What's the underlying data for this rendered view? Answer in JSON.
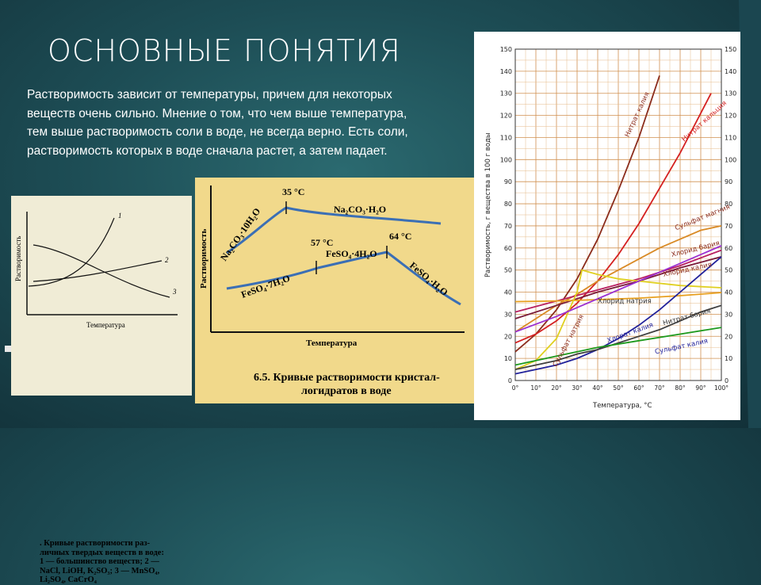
{
  "slide": {
    "title": "ОСНОВНЫЕ ПОНЯТИЯ",
    "text": "Растворимость зависит от температуры, причем для некоторых веществ очень сильно. Мнение о том, что чем выше температура, тем выше растворимость соли в воде, не всегда верно. Есть соли, растворимость которых в воде сначала растет, а затем падает."
  },
  "figure1": {
    "ylabel": "Растворимость",
    "xlabel": "Температура",
    "curve_labels": [
      "1",
      "2",
      "3"
    ],
    "caption_lines": [
      ". Кривые растворимости раз-",
      "личных твердых веществ в воде:",
      "1 — большинство веществ; 2 —",
      "NaCl, LiOH, K₂SO₃; 3 — MnSO₄,",
      "Li₂SO₄, CaCrO₄"
    ]
  },
  "figure2": {
    "ylabel": "Растворимость",
    "xlabel": "Температура",
    "labels": {
      "t35": "35 °C",
      "t57": "57 °C",
      "t64": "64 °C",
      "na10": "Na₂CO₃·10H₂O",
      "na1": "Na₂CO₃·H₂O",
      "fe4": "FeSO₄·4H₂O",
      "fe7": "FeSO₄·7H₂O",
      "fe1": "FeSO₄·H₂O"
    },
    "caption_num": "6.5.",
    "caption_lines": [
      "Кривые растворимости кристал-",
      "логидратов в воде"
    ]
  },
  "chart_data": {
    "type": "line",
    "xlabel": "Температура, °C",
    "ylabel": "Растворимость, г вещества в 100 г воды",
    "xlim": [
      0,
      100
    ],
    "ylim": [
      0,
      150
    ],
    "x_ticks": [
      "0°",
      "10°",
      "20°",
      "30°",
      "40°",
      "50°",
      "60°",
      "70°",
      "80°",
      "90°",
      "100°"
    ],
    "y_ticks": [
      0,
      10,
      20,
      30,
      40,
      50,
      60,
      70,
      80,
      90,
      100,
      110,
      120,
      130,
      140,
      150
    ],
    "series": [
      {
        "name": "Нитрат калия",
        "color": "#8b2c1c",
        "x": [
          0,
          10,
          20,
          30,
          40,
          50,
          60,
          70
        ],
        "y": [
          13,
          21,
          32,
          46,
          64,
          86,
          110,
          138
        ]
      },
      {
        "name": "Нитрат кальция",
        "color": "#d42020",
        "x": [
          0,
          10,
          20,
          30,
          40,
          50,
          60,
          70,
          80,
          90,
          95
        ],
        "y": [
          17,
          21,
          27,
          35,
          45,
          57,
          71,
          87,
          103,
          121,
          130
        ]
      },
      {
        "name": "Сульфат магния",
        "color": "#d98a25",
        "x": [
          0,
          10,
          20,
          30,
          40,
          50,
          60,
          70,
          80,
          90,
          100
        ],
        "y": [
          22,
          28,
          34,
          39,
          45,
          50,
          55,
          60,
          64,
          68,
          70
        ]
      },
      {
        "name": "Хлорид бария",
        "color": "#b82060",
        "x": [
          0,
          20,
          40,
          60,
          80,
          100
        ],
        "y": [
          31,
          36,
          41,
          46,
          52,
          59
        ]
      },
      {
        "name": "Хлорид калия",
        "color": "#7a1c3a",
        "x": [
          0,
          20,
          40,
          60,
          80,
          100
        ],
        "y": [
          28,
          34,
          40,
          45,
          51,
          56
        ]
      },
      {
        "name": "Хлорид натрия",
        "color": "#e8a020",
        "x": [
          0,
          20,
          40,
          60,
          80,
          100
        ],
        "y": [
          35.7,
          36,
          36.6,
          37.3,
          38.4,
          39.8
        ]
      },
      {
        "name": "Сульфат натрия",
        "color": "#e0d020",
        "x": [
          0,
          10,
          20,
          30,
          32.4,
          40,
          50,
          60,
          80,
          100
        ],
        "y": [
          5,
          9,
          19,
          40,
          50,
          48,
          46,
          45,
          43,
          42
        ]
      },
      {
        "name": "Хлорат калия",
        "color": "#22229a",
        "x": [
          0,
          10,
          20,
          30,
          40,
          50,
          60,
          70,
          80,
          90,
          100
        ],
        "y": [
          3,
          5,
          7,
          10,
          14,
          19,
          25,
          32,
          40,
          48,
          56
        ]
      },
      {
        "name": "Нитрат бария",
        "color": "#404040",
        "x": [
          0,
          10,
          20,
          30,
          40,
          50,
          60,
          70,
          80,
          90,
          100
        ],
        "y": [
          5,
          7,
          9,
          12,
          14,
          17,
          20,
          23,
          27,
          31,
          34
        ]
      },
      {
        "name": "Сульфат калия",
        "color": "#1e9a1e",
        "x": [
          0,
          20,
          40,
          60,
          80,
          100
        ],
        "y": [
          7,
          11,
          15,
          18,
          21,
          24
        ]
      },
      {
        "name": "Фиолетовая кривая",
        "color": "#9b30d0",
        "x": [
          0,
          20,
          40,
          60,
          80,
          100
        ],
        "y": [
          22,
          29,
          37,
          45,
          53,
          61
        ]
      }
    ],
    "label_texts": {
      "knit": "Нитрат калия",
      "canit": "Нитрат кальция",
      "mgso": "Сульфат магния",
      "bacl": "Хлорид бария",
      "kcl": "Хлорид калия",
      "nacl": "Хлорид натрия",
      "naso": "Сульфат натрия",
      "kclo": "Хлорат калия",
      "banit": "Нитрат бария",
      "kso": "Сульфат калия"
    }
  }
}
